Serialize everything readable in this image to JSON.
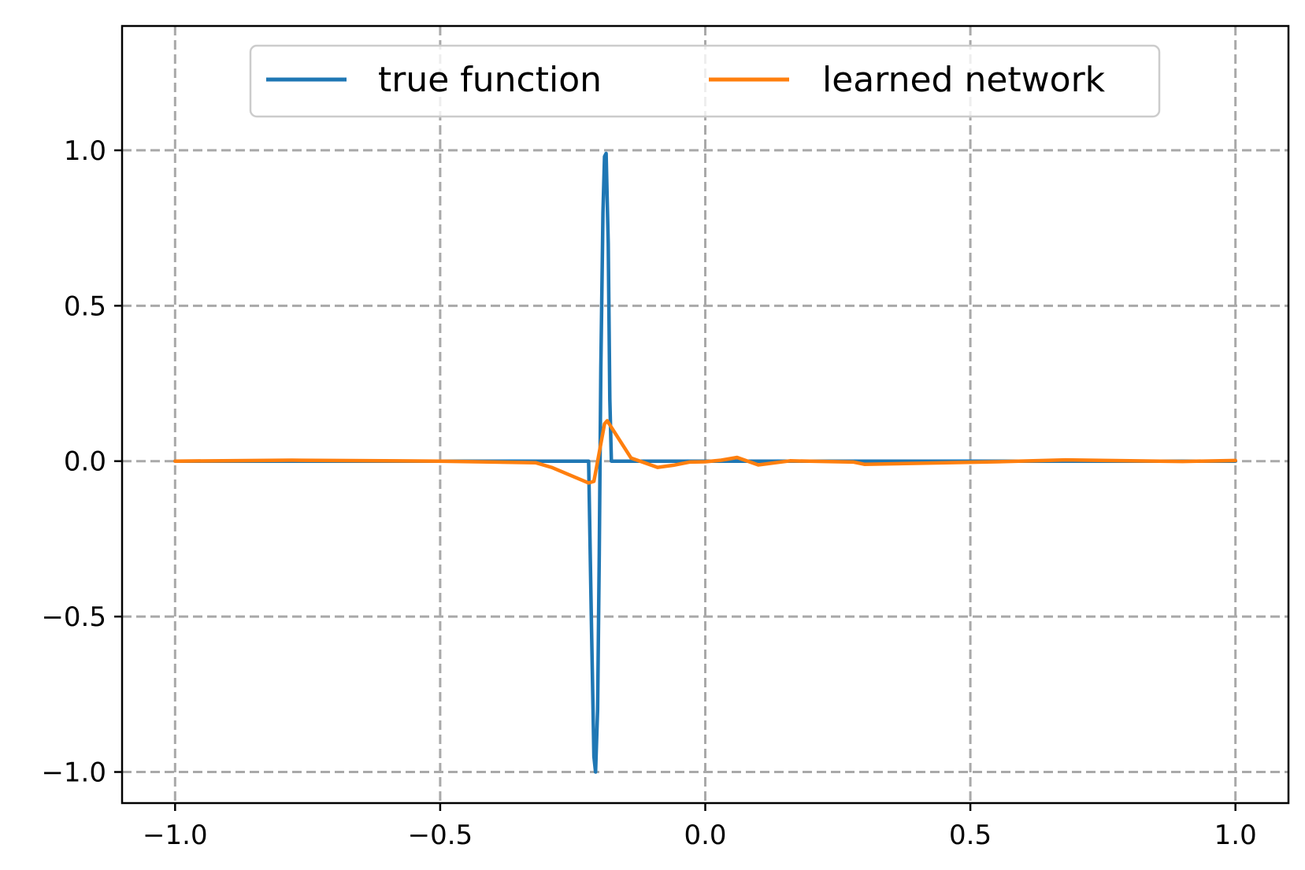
{
  "chart_data": {
    "type": "line",
    "title": "",
    "xlabel": "",
    "ylabel": "",
    "xlim": [
      -1.1,
      1.1
    ],
    "ylim": [
      -1.1,
      1.4
    ],
    "grid": true,
    "legend_placement": "upper-center",
    "x_ticks": [
      -1.0,
      -0.5,
      0.0,
      0.5,
      1.0
    ],
    "x_tick_labels": [
      "−1.0",
      "−0.5",
      "0.0",
      "0.5",
      "1.0"
    ],
    "y_ticks": [
      -1.0,
      -0.5,
      0.0,
      0.5,
      1.0
    ],
    "y_tick_labels": [
      "−1.0",
      "−0.5",
      "0.0",
      "0.5",
      "1.0"
    ],
    "series": [
      {
        "name": "true function",
        "color": "#1f77b4",
        "points": [
          [
            -1.0,
            0.0
          ],
          [
            -0.22,
            0.0
          ],
          [
            -0.215,
            -0.5
          ],
          [
            -0.21,
            -0.95
          ],
          [
            -0.207,
            -1.0
          ],
          [
            -0.203,
            -0.8
          ],
          [
            -0.2,
            -0.3
          ],
          [
            -0.197,
            0.3
          ],
          [
            -0.193,
            0.8
          ],
          [
            -0.19,
            0.98
          ],
          [
            -0.187,
            0.99
          ],
          [
            -0.183,
            0.7
          ],
          [
            -0.18,
            0.2
          ],
          [
            -0.177,
            0.0
          ],
          [
            1.0,
            0.0
          ]
        ]
      },
      {
        "name": "learned network",
        "color": "#ff7f0e",
        "points": [
          [
            -1.0,
            0.0
          ],
          [
            -0.78,
            0.003
          ],
          [
            -0.5,
            0.0
          ],
          [
            -0.32,
            -0.005
          ],
          [
            -0.29,
            -0.02
          ],
          [
            -0.22,
            -0.07
          ],
          [
            -0.21,
            -0.065
          ],
          [
            -0.19,
            0.12
          ],
          [
            -0.185,
            0.13
          ],
          [
            -0.14,
            0.01
          ],
          [
            -0.09,
            -0.02
          ],
          [
            -0.06,
            -0.013
          ],
          [
            -0.03,
            -0.003
          ],
          [
            0.0,
            -0.002
          ],
          [
            0.03,
            0.003
          ],
          [
            0.06,
            0.012
          ],
          [
            0.1,
            -0.012
          ],
          [
            0.16,
            0.001
          ],
          [
            0.28,
            -0.003
          ],
          [
            0.3,
            -0.01
          ],
          [
            0.55,
            -0.002
          ],
          [
            0.68,
            0.004
          ],
          [
            0.9,
            -0.001
          ],
          [
            1.0,
            0.002
          ]
        ]
      }
    ]
  }
}
